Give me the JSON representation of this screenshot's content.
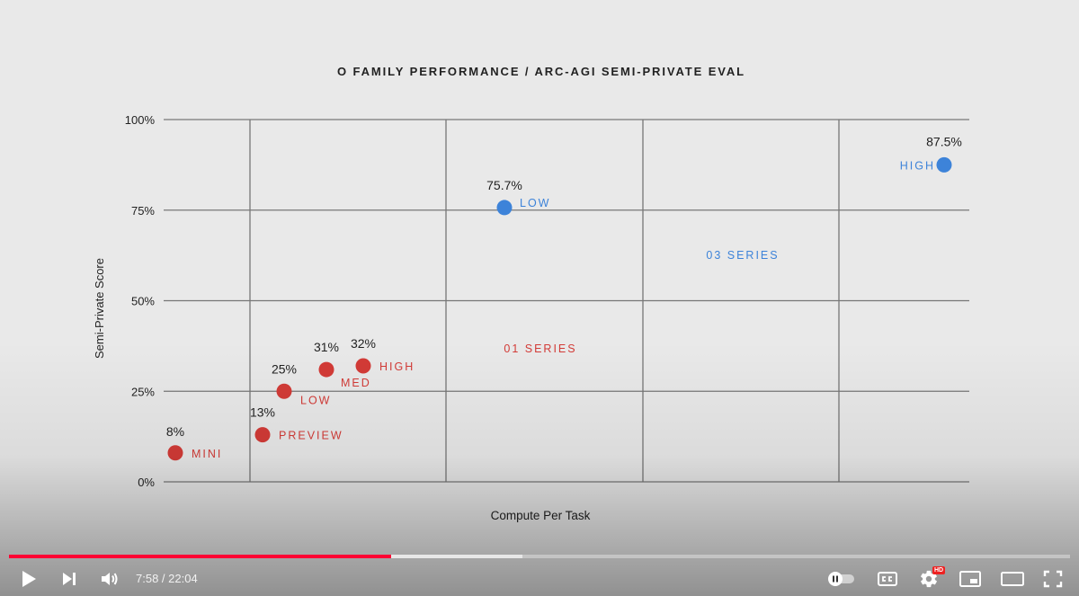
{
  "chart_data": {
    "type": "scatter",
    "title": "O FAMILY PERFORMANCE / ARC-AGI SEMI-PRIVATE EVAL",
    "xlabel": "Compute Per Task",
    "ylabel": "Semi-Private Score",
    "ylim": [
      0,
      100
    ],
    "yticks": [
      "0%",
      "25%",
      "50%",
      "75%",
      "100%"
    ],
    "ytick_values": [
      0,
      25,
      50,
      75,
      100
    ],
    "grid": true,
    "legend": "none",
    "series": [
      {
        "name": "01 SERIES",
        "color": "#d33b37",
        "points": [
          {
            "label": "MINI",
            "value_label": "8%",
            "y": 8
          },
          {
            "label": "PREVIEW",
            "value_label": "13%",
            "y": 13
          },
          {
            "label": "LOW",
            "value_label": "25%",
            "y": 25
          },
          {
            "label": "MED",
            "value_label": "31%",
            "y": 31
          },
          {
            "label": "HIGH",
            "value_label": "32%",
            "y": 32
          }
        ]
      },
      {
        "name": "03 SERIES",
        "color": "#3d83d9",
        "points": [
          {
            "label": "LOW",
            "value_label": "75.7%",
            "y": 75.7
          },
          {
            "label": "HIGH",
            "value_label": "87.5%",
            "y": 87.5
          }
        ]
      }
    ]
  },
  "player": {
    "time_current": "7:58",
    "time_separator": " / ",
    "time_total": "22:04",
    "progress_played": 0.36,
    "progress_buffered": 0.484,
    "accent_color": "#ff0033",
    "hd_badge": "HD",
    "icons": {
      "play": "play-icon",
      "next": "next-icon",
      "volume": "volume-icon",
      "autoplay": "autoplay-toggle-icon",
      "captions": "captions-icon",
      "settings": "settings-gear-icon",
      "miniplayer": "miniplayer-icon",
      "theater": "theater-mode-icon",
      "fullscreen": "fullscreen-icon"
    }
  }
}
